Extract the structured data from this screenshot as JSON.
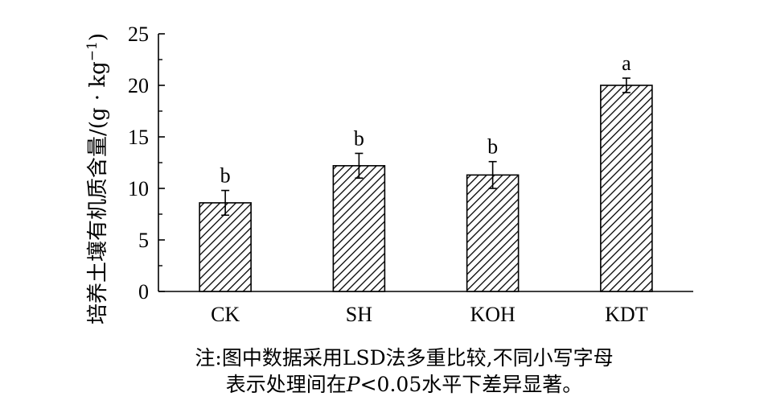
{
  "chart_data": {
    "type": "bar",
    "categories": [
      "CK",
      "SH",
      "KOH",
      "KDT"
    ],
    "values": [
      8.6,
      12.2,
      11.3,
      20.0
    ],
    "errors": [
      1.2,
      1.2,
      1.3,
      0.7
    ],
    "significance_letters": [
      "b",
      "b",
      "b",
      "a"
    ],
    "ylabel_main": "培养土壤有机质含量/(g · kg",
    "ylabel_sup": "−1",
    "ylabel_close": ")",
    "ylim": [
      0,
      25
    ],
    "yticks": [
      0,
      5,
      10,
      15,
      20,
      25
    ],
    "ytick_labels": [
      "0",
      "5",
      "10",
      "15",
      "20",
      "25"
    ],
    "bar_pattern": "diagonal-hatch",
    "grid": false
  },
  "note": {
    "line1": "注:图中数据采用LSD法多重比较,不同小写字母",
    "line2_prefix": "表示处理间在",
    "line2_italic": "P",
    "line2_suffix": "<0.05水平下差异显著。"
  }
}
